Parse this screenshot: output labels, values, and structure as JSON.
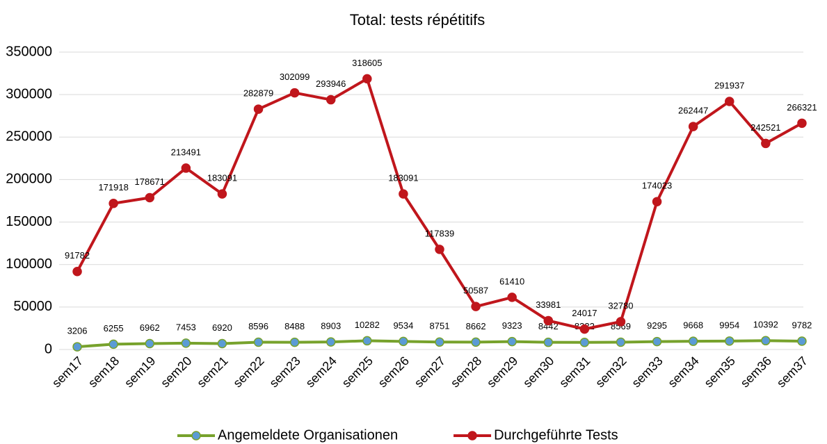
{
  "chart_data": {
    "type": "line",
    "title": "Total: tests répétitifs",
    "categories": [
      "sem17",
      "sem18",
      "sem19",
      "sem20",
      "sem21",
      "sem22",
      "sem23",
      "sem24",
      "sem25",
      "sem26",
      "sem27",
      "sem28",
      "sem29",
      "sem30",
      "sem31",
      "sem32",
      "sem33",
      "sem34",
      "sem35",
      "sem36",
      "sem37"
    ],
    "series": [
      {
        "name": "Angemeldete Organisationen",
        "color": "#77a22c",
        "marker_color": "#5b9bd5",
        "values": [
          3206,
          6255,
          6962,
          7453,
          6920,
          8596,
          8488,
          8903,
          10282,
          9534,
          8751,
          8662,
          9323,
          8442,
          8332,
          8569,
          9295,
          9668,
          9954,
          10392,
          9782
        ]
      },
      {
        "name": "Durchgeführte Tests",
        "color": "#c0161c",
        "marker_color": "#c0161c",
        "values": [
          91782,
          171918,
          178671,
          213491,
          183091,
          282879,
          302099,
          293946,
          318605,
          183091,
          117839,
          50587,
          61410,
          33981,
          24017,
          32780,
          174023,
          262447,
          291937,
          242521,
          266321
        ]
      }
    ],
    "ylim": [
      0,
      350000
    ],
    "yticks": [
      0,
      50000,
      100000,
      150000,
      200000,
      250000,
      300000,
      350000
    ],
    "grid": true,
    "legend": "bottom",
    "data_labels": true
  }
}
